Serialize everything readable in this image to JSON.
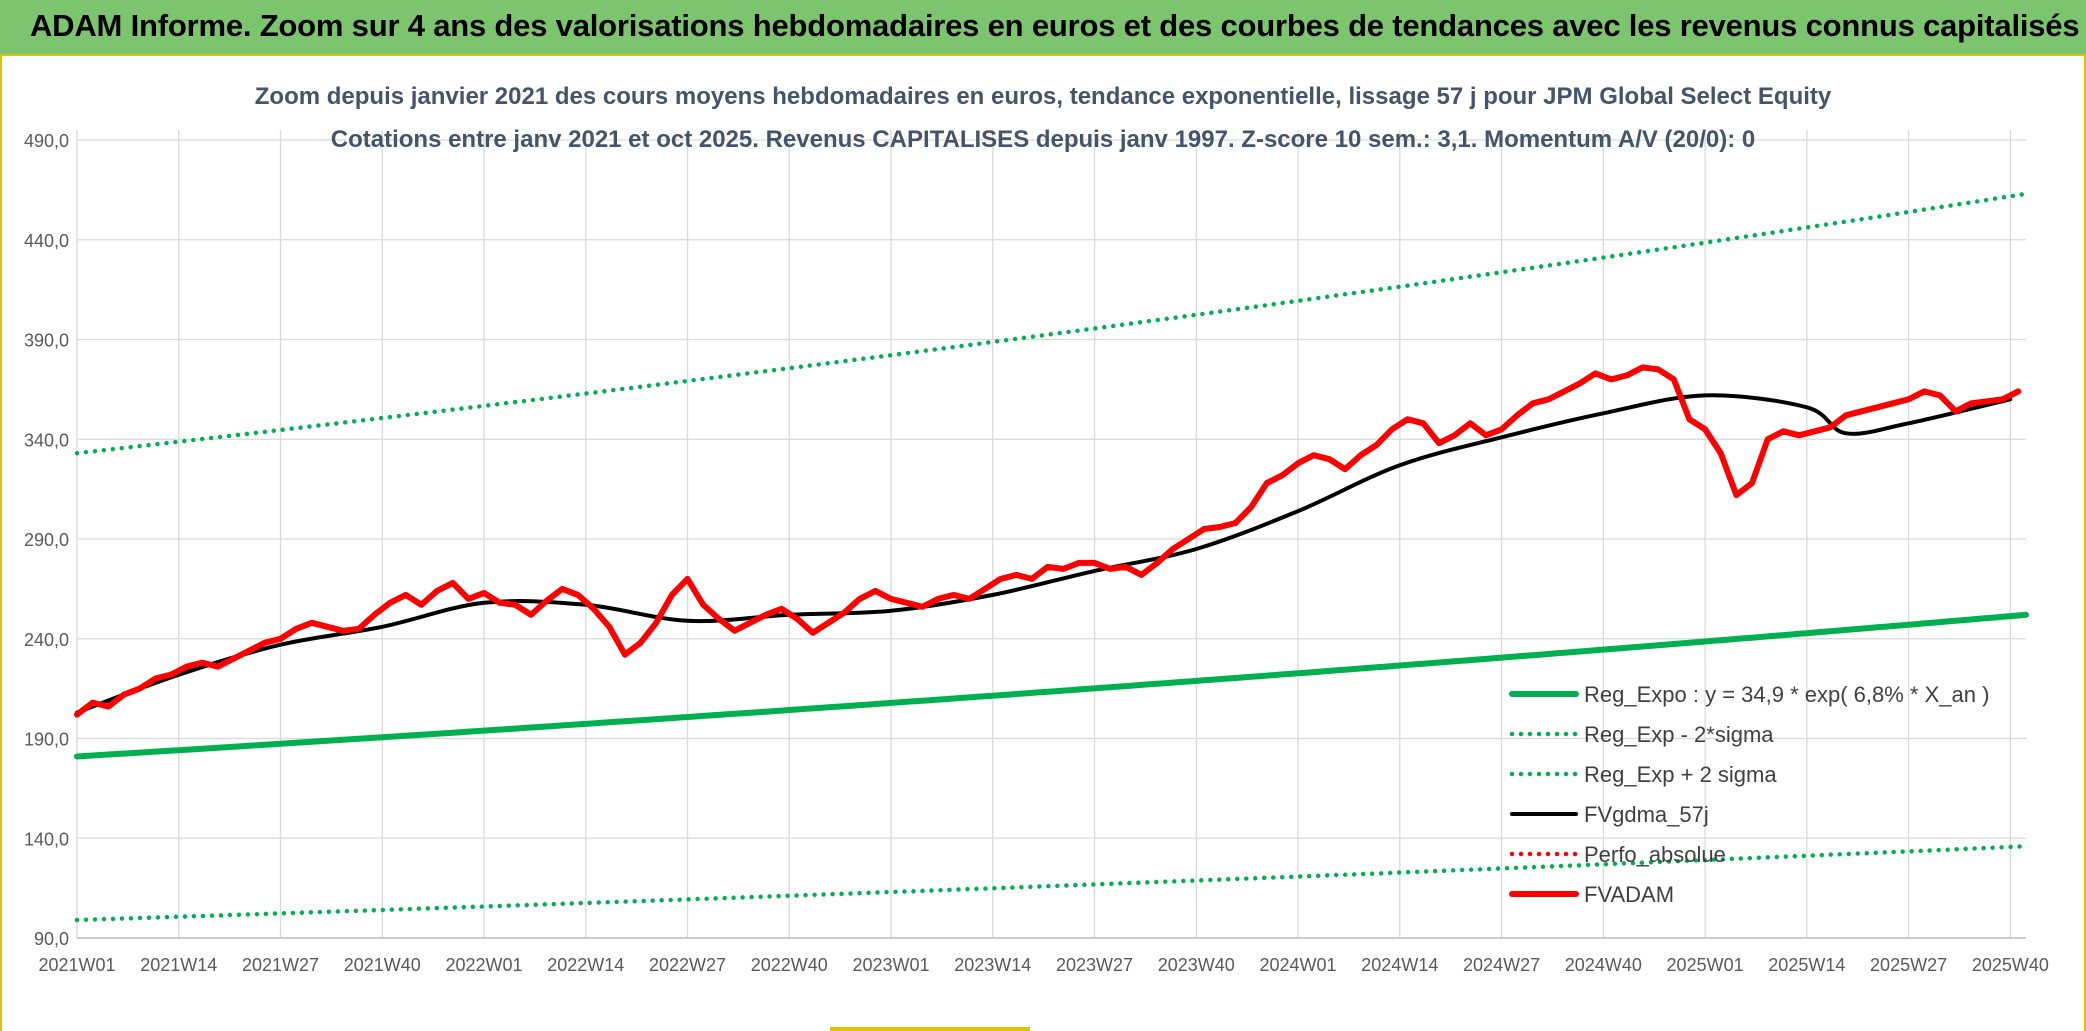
{
  "header": {
    "title": "ADAM Informe. Zoom sur 4 ans des valorisations hebdomadaires en euros et des courbes de tendances avec les revenus connus capitalisés"
  },
  "colors": {
    "header_bg": "#7dc46f",
    "accent_border": "#e0c200",
    "reg_green": "#00b050",
    "fvadam_red": "#ff0000",
    "fvgdma_black": "#000000",
    "title_color": "#44546a"
  },
  "chart_data": {
    "type": "line",
    "title": "Zoom depuis janvier 2021 des cours moyens hebdomadaires en euros, tendance exponentielle, lissage 57 j pour JPM Global Select Equity",
    "subtitle": "Cotations entre janv 2021 et oct 2025. Revenus CAPITALISES depuis janv 1997. Z-score 10 sem.: 3,1. Momentum A/V (20/0): 0",
    "xlabel": "",
    "ylabel": "",
    "ylim": [
      90,
      490
    ],
    "yticks": [
      "90,0",
      "140,0",
      "190,0",
      "240,0",
      "290,0",
      "340,0",
      "390,0",
      "440,0",
      "490,0"
    ],
    "ytick_values": [
      90,
      140,
      190,
      240,
      290,
      340,
      390,
      440,
      490
    ],
    "xticks": [
      "2021W01",
      "2021W14",
      "2021W27",
      "2021W40",
      "2022W01",
      "2022W14",
      "2022W27",
      "2022W40",
      "2023W01",
      "2023W14",
      "2023W27",
      "2023W40",
      "2024W01",
      "2024W14",
      "2024W27",
      "2024W40",
      "2025W01",
      "2025W14",
      "2025W27",
      "2025W40"
    ],
    "n_weeks": 249,
    "legend_position": "bottom-right",
    "series": [
      {
        "name": "Reg_Expo : y = 34,9 * exp( 6,8% *  X_an )",
        "style": "solid-thick",
        "color": "#00b050",
        "x": [
          0,
          249
        ],
        "y": [
          181,
          252
        ]
      },
      {
        "name": "Reg_Exp - 2*sigma",
        "style": "dotted",
        "color": "#00b050",
        "x": [
          0,
          249
        ],
        "y": [
          99,
          136
        ]
      },
      {
        "name": "Reg_Exp + 2 sigma",
        "style": "dotted",
        "color": "#00b050",
        "x": [
          0,
          249
        ],
        "y": [
          333,
          463
        ]
      },
      {
        "name": "FVgdma_57j",
        "style": "solid",
        "color": "#000000",
        "x": [
          0,
          13,
          26,
          39,
          52,
          65,
          78,
          91,
          104,
          117,
          130,
          143,
          156,
          169,
          182,
          195,
          208,
          221,
          226,
          234,
          247
        ],
        "y": [
          203,
          222,
          237,
          246,
          258,
          257,
          249,
          252,
          254,
          262,
          274,
          285,
          304,
          327,
          341,
          353,
          362,
          356,
          343,
          348,
          360
        ]
      },
      {
        "name": "Perfo_absolue",
        "style": "dotted",
        "color": "#ff0000",
        "x": [],
        "y": []
      },
      {
        "name": "FVADAM",
        "style": "solid-thick",
        "color": "#ff0000",
        "x": [
          0,
          2,
          4,
          6,
          8,
          10,
          12,
          14,
          16,
          18,
          20,
          22,
          24,
          26,
          28,
          30,
          32,
          34,
          36,
          38,
          40,
          42,
          44,
          46,
          48,
          50,
          52,
          54,
          56,
          58,
          60,
          62,
          64,
          66,
          68,
          70,
          72,
          74,
          76,
          78,
          80,
          82,
          84,
          86,
          88,
          90,
          92,
          94,
          96,
          98,
          100,
          102,
          104,
          106,
          108,
          110,
          112,
          114,
          116,
          118,
          120,
          122,
          124,
          126,
          128,
          130,
          132,
          134,
          136,
          138,
          140,
          142,
          144,
          146,
          148,
          150,
          152,
          154,
          156,
          158,
          160,
          162,
          164,
          166,
          168,
          170,
          172,
          174,
          176,
          178,
          180,
          182,
          184,
          186,
          188,
          190,
          192,
          194,
          196,
          198,
          200,
          202,
          204,
          206,
          208,
          210,
          212,
          214,
          216,
          218,
          220,
          222,
          224,
          226,
          228,
          230,
          232,
          234,
          236,
          238,
          240,
          242,
          244,
          246,
          248
        ],
        "y": [
          202,
          208,
          206,
          212,
          215,
          220,
          222,
          226,
          228,
          226,
          230,
          234,
          238,
          240,
          245,
          248,
          246,
          244,
          245,
          252,
          258,
          262,
          257,
          264,
          268,
          260,
          263,
          258,
          257,
          252,
          259,
          265,
          262,
          255,
          246,
          232,
          238,
          248,
          262,
          270,
          257,
          250,
          244,
          248,
          252,
          255,
          250,
          243,
          248,
          253,
          260,
          264,
          260,
          258,
          256,
          260,
          262,
          260,
          265,
          270,
          272,
          270,
          276,
          275,
          278,
          278,
          275,
          276,
          272,
          278,
          285,
          290,
          295,
          296,
          298,
          306,
          318,
          322,
          328,
          332,
          330,
          325,
          332,
          337,
          345,
          350,
          348,
          338,
          342,
          348,
          342,
          345,
          352,
          358,
          360,
          364,
          368,
          373,
          370,
          372,
          376,
          375,
          370,
          350,
          345,
          333,
          312,
          318,
          340,
          344,
          342,
          344,
          346,
          352,
          354,
          356,
          358,
          360,
          364,
          362,
          354,
          358,
          359,
          360,
          364
        ]
      }
    ]
  }
}
